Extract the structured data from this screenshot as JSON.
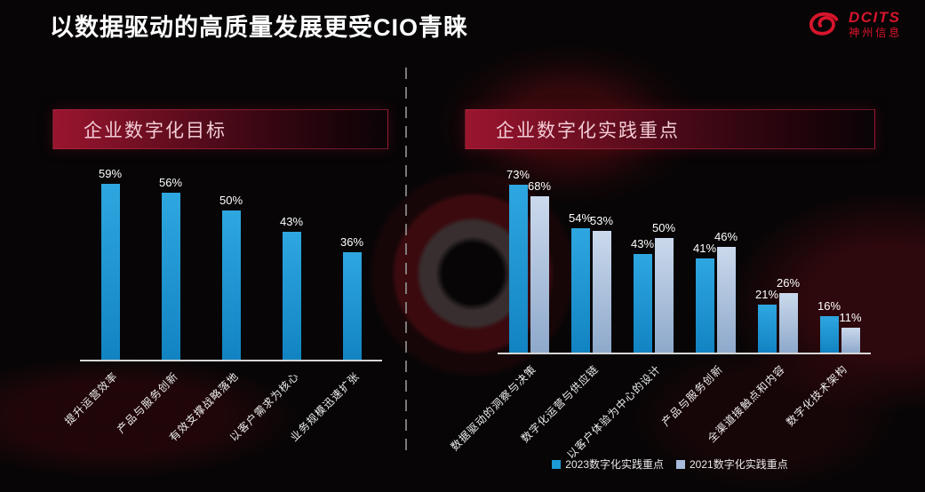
{
  "slide": {
    "title": "以数据驱动的高质量发展更受CIO青睐"
  },
  "brand": {
    "name": "DCITS",
    "company": "神州信息",
    "color": "#d6152c"
  },
  "sections": {
    "goals_header": "企业数字化目标",
    "practice_header": "企业数字化实践重点"
  },
  "chart_data": [
    {
      "type": "bar",
      "title": "企业数字化目标",
      "unit": "%",
      "categories": [
        "提升运营效率",
        "产品与服务创新",
        "有效支撑战略落地",
        "以客户需求为核心",
        "业务规模迅速扩张"
      ],
      "values": [
        59,
        56,
        50,
        43,
        36
      ],
      "ylim": [
        0,
        64
      ],
      "grid": false,
      "color_top": "#2ea7e0",
      "color_bottom": "#1283c2",
      "value_label_color": "#ffffff",
      "axis_color": "#d6d6d6"
    },
    {
      "type": "bar",
      "title": "企业数字化实践重点",
      "unit": "%",
      "categories": [
        "数据驱动的洞察与决策",
        "数字化运营与供应链",
        "以客户体验为中心的设计",
        "产品与服务创新",
        "全渠道接触点和内容",
        "数字化技术架构"
      ],
      "series": [
        {
          "name": "2023数字化实践重点",
          "values": [
            73,
            54,
            43,
            41,
            21,
            16
          ],
          "color_top": "#2ea7e0",
          "color_bottom": "#1283c2",
          "swatch": "#1e9ad6"
        },
        {
          "name": "2021数字化实践重点",
          "values": [
            68,
            53,
            50,
            46,
            26,
            11
          ],
          "color_top": "#cbd9ec",
          "color_bottom": "#8ea9cb",
          "swatch": "#a7bbdb"
        }
      ],
      "ylim": [
        0,
        80
      ],
      "grid": false,
      "legend_position": "bottom",
      "value_label_color": "#ffffff",
      "axis_color": "#d6d6d6"
    }
  ]
}
